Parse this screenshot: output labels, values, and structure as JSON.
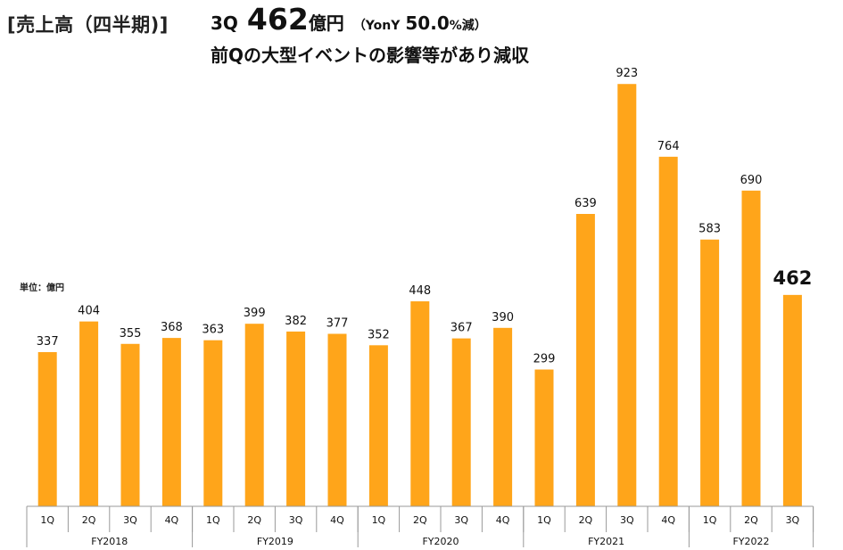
{
  "header": {
    "section_title": "[売上高（四半期)]",
    "quarter": "3Q",
    "value": "462",
    "unit": "億円",
    "yoy_label": "（YonY",
    "yoy_value": "50.0",
    "yoy_suffix": "%減）",
    "subtitle": "前Qの大型イベントの影響等があり減収"
  },
  "unit_label": "単位：億円",
  "colors": {
    "bar": "#FFA51A",
    "text": "#111111",
    "axis": "#999999"
  },
  "chart_data": {
    "type": "bar",
    "title": "[売上高（四半期)]",
    "ylabel": "単位：億円",
    "ylim": [
      0,
      1000
    ],
    "grid": false,
    "legend": "none",
    "groups": [
      {
        "label": "FY2018",
        "quarters": [
          "1Q",
          "2Q",
          "3Q",
          "4Q"
        ],
        "values": [
          337,
          404,
          355,
          368
        ]
      },
      {
        "label": "FY2019",
        "quarters": [
          "1Q",
          "2Q",
          "3Q",
          "4Q"
        ],
        "values": [
          363,
          399,
          382,
          377
        ]
      },
      {
        "label": "FY2020",
        "quarters": [
          "1Q",
          "2Q",
          "3Q",
          "4Q"
        ],
        "values": [
          352,
          448,
          367,
          390
        ]
      },
      {
        "label": "FY2021",
        "quarters": [
          "1Q",
          "2Q",
          "3Q",
          "4Q"
        ],
        "values": [
          299,
          639,
          923,
          764
        ]
      },
      {
        "label": "FY2022",
        "quarters": [
          "1Q",
          "2Q",
          "3Q"
        ],
        "values": [
          583,
          690,
          462
        ]
      }
    ],
    "highlight": {
      "group": "FY2022",
      "quarter": "3Q"
    }
  }
}
